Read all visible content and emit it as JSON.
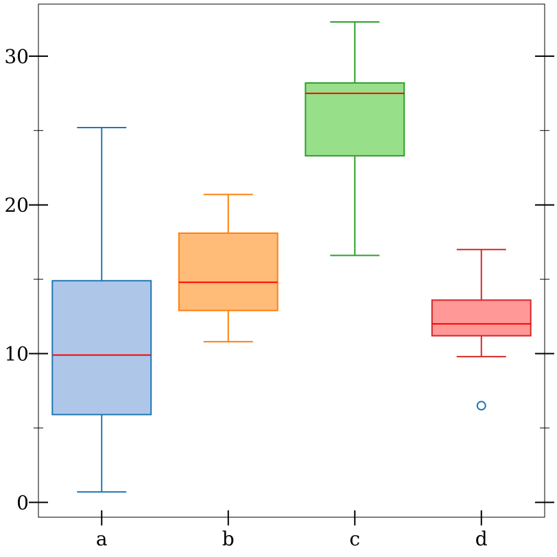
{
  "chart_data": {
    "type": "box",
    "title": "",
    "xlabel": "",
    "ylabel": "",
    "categories": [
      "a",
      "b",
      "c",
      "d"
    ],
    "ylim": [
      -1,
      33.5
    ],
    "yticks": {
      "major": [
        0,
        10,
        20,
        30
      ],
      "major_labels": [
        "0",
        "10",
        "20",
        "30"
      ],
      "minor": [
        5,
        15,
        25
      ]
    },
    "grid": false,
    "legend": "none",
    "median_color": "#ff0000",
    "boxes": [
      {
        "category": "a",
        "whisker_low": 0.7,
        "q1": 5.9,
        "median": 9.9,
        "q3": 14.9,
        "whisker_high": 25.2,
        "outliers": [],
        "fill": "#aec7e8",
        "edge": "#1f77b4"
      },
      {
        "category": "b",
        "whisker_low": 10.8,
        "q1": 12.9,
        "median": 14.8,
        "q3": 18.1,
        "whisker_high": 20.7,
        "outliers": [],
        "fill": "#ffbb78",
        "edge": "#ff7f0e"
      },
      {
        "category": "c",
        "whisker_low": 16.6,
        "q1": 23.3,
        "median": 27.5,
        "q3": 28.2,
        "whisker_high": 32.3,
        "outliers": [],
        "fill": "#98df8a",
        "edge": "#2ca02c"
      },
      {
        "category": "d",
        "whisker_low": 9.8,
        "q1": 11.2,
        "median": 12.0,
        "q3": 13.6,
        "whisker_high": 17.0,
        "outliers": [
          6.5
        ],
        "fill": "#ff9896",
        "edge": "#d62728",
        "outlier_color": "#1f77b4"
      }
    ]
  }
}
